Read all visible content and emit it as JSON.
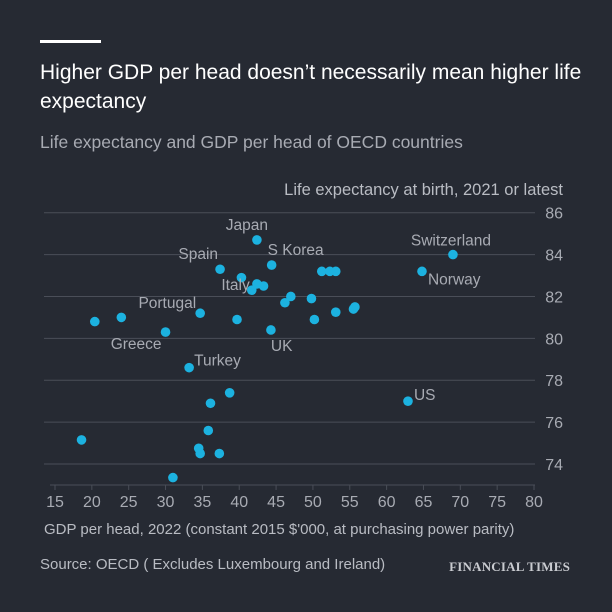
{
  "header": {
    "title": "Higher GDP per head doesn’t necessarily mean higher life expectancy",
    "subtitle": "Life expectancy and GDP per head of OECD countries"
  },
  "footer": {
    "source": "Source: OECD ( Excludes Luxembourg and Ireland)",
    "logo": "FINANCIAL TIMES"
  },
  "colors": {
    "background": "#262a33",
    "dot": "#1cb2e0",
    "grid": "#4a4e58",
    "text": "#a8abb3"
  },
  "chart_data": {
    "type": "scatter",
    "title": "Higher GDP per head doesn’t necessarily mean higher life expectancy",
    "xlabel": "GDP per head, 2022 (constant 2015 $'000, at purchasing power parity)",
    "ylabel": "Life expectancy at birth, 2021 or latest",
    "xlim": [
      15,
      80
    ],
    "ylim": [
      73,
      86
    ],
    "xticks": [
      15,
      20,
      25,
      30,
      35,
      40,
      45,
      50,
      55,
      60,
      65,
      70,
      75,
      80
    ],
    "yticks": [
      74,
      76,
      78,
      80,
      82,
      84,
      86
    ],
    "grid": true,
    "points": [
      {
        "x": 20.4,
        "y": 80.8,
        "label": ""
      },
      {
        "x": 24.0,
        "y": 81.0,
        "label": ""
      },
      {
        "x": 30.0,
        "y": 80.3,
        "label": "Greece"
      },
      {
        "x": 34.7,
        "y": 81.2,
        "label": "Portugal"
      },
      {
        "x": 37.4,
        "y": 83.3,
        "label": "Spain"
      },
      {
        "x": 40.3,
        "y": 82.9,
        "label": ""
      },
      {
        "x": 42.4,
        "y": 84.7,
        "label": "Japan"
      },
      {
        "x": 42.4,
        "y": 82.6,
        "label": ""
      },
      {
        "x": 43.3,
        "y": 82.5,
        "label": ""
      },
      {
        "x": 41.7,
        "y": 82.3,
        "label": "Italy"
      },
      {
        "x": 44.4,
        "y": 83.5,
        "label": "S Korea"
      },
      {
        "x": 39.7,
        "y": 80.9,
        "label": ""
      },
      {
        "x": 44.3,
        "y": 80.4,
        "label": "UK"
      },
      {
        "x": 46.2,
        "y": 81.7,
        "label": ""
      },
      {
        "x": 47.0,
        "y": 82.0,
        "label": ""
      },
      {
        "x": 49.8,
        "y": 81.9,
        "label": ""
      },
      {
        "x": 50.2,
        "y": 80.9,
        "label": ""
      },
      {
        "x": 51.2,
        "y": 83.2,
        "label": ""
      },
      {
        "x": 52.3,
        "y": 83.2,
        "label": ""
      },
      {
        "x": 53.1,
        "y": 83.2,
        "label": ""
      },
      {
        "x": 53.1,
        "y": 81.25,
        "label": ""
      },
      {
        "x": 55.5,
        "y": 81.4,
        "label": ""
      },
      {
        "x": 55.7,
        "y": 81.5,
        "label": ""
      },
      {
        "x": 69.0,
        "y": 84.0,
        "label": "Switzerland"
      },
      {
        "x": 64.8,
        "y": 83.2,
        "label": "Norway"
      },
      {
        "x": 62.9,
        "y": 77.0,
        "label": "US"
      },
      {
        "x": 33.2,
        "y": 78.6,
        "label": "Turkey"
      },
      {
        "x": 38.7,
        "y": 77.4,
        "label": ""
      },
      {
        "x": 36.1,
        "y": 76.9,
        "label": ""
      },
      {
        "x": 35.8,
        "y": 75.6,
        "label": ""
      },
      {
        "x": 18.6,
        "y": 75.15,
        "label": ""
      },
      {
        "x": 34.5,
        "y": 74.75,
        "label": ""
      },
      {
        "x": 34.7,
        "y": 74.5,
        "label": ""
      },
      {
        "x": 37.3,
        "y": 74.5,
        "label": ""
      },
      {
        "x": 31.0,
        "y": 73.35,
        "label": ""
      }
    ]
  }
}
